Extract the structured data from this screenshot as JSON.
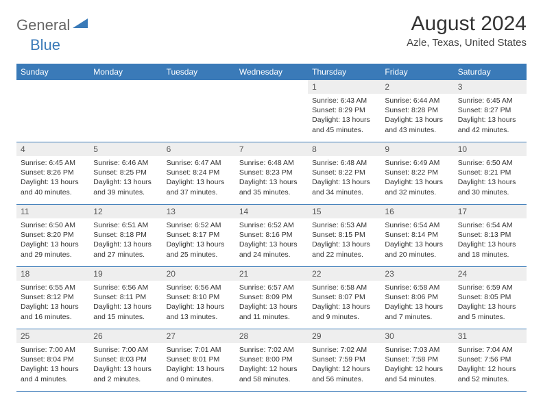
{
  "logo": {
    "general": "General",
    "blue": "Blue"
  },
  "title": "August 2024",
  "subtitle": "Azle, Texas, United States",
  "colors": {
    "header_bg": "#3a7ab8",
    "header_text": "#ffffff",
    "daynum_bg": "#eeeeee",
    "border": "#3a7ab8",
    "page_bg": "#ffffff",
    "title_color": "#333333",
    "subtitle_color": "#444444",
    "logo_general": "#666666",
    "logo_blue": "#3a7ab8",
    "body_text": "#333333"
  },
  "daynames": [
    "Sunday",
    "Monday",
    "Tuesday",
    "Wednesday",
    "Thursday",
    "Friday",
    "Saturday"
  ],
  "weeks": [
    [
      {
        "n": "",
        "sr": "",
        "ss": "",
        "dl": ""
      },
      {
        "n": "",
        "sr": "",
        "ss": "",
        "dl": ""
      },
      {
        "n": "",
        "sr": "",
        "ss": "",
        "dl": ""
      },
      {
        "n": "",
        "sr": "",
        "ss": "",
        "dl": ""
      },
      {
        "n": "1",
        "sr": "Sunrise: 6:43 AM",
        "ss": "Sunset: 8:29 PM",
        "dl": "Daylight: 13 hours and 45 minutes."
      },
      {
        "n": "2",
        "sr": "Sunrise: 6:44 AM",
        "ss": "Sunset: 8:28 PM",
        "dl": "Daylight: 13 hours and 43 minutes."
      },
      {
        "n": "3",
        "sr": "Sunrise: 6:45 AM",
        "ss": "Sunset: 8:27 PM",
        "dl": "Daylight: 13 hours and 42 minutes."
      }
    ],
    [
      {
        "n": "4",
        "sr": "Sunrise: 6:45 AM",
        "ss": "Sunset: 8:26 PM",
        "dl": "Daylight: 13 hours and 40 minutes."
      },
      {
        "n": "5",
        "sr": "Sunrise: 6:46 AM",
        "ss": "Sunset: 8:25 PM",
        "dl": "Daylight: 13 hours and 39 minutes."
      },
      {
        "n": "6",
        "sr": "Sunrise: 6:47 AM",
        "ss": "Sunset: 8:24 PM",
        "dl": "Daylight: 13 hours and 37 minutes."
      },
      {
        "n": "7",
        "sr": "Sunrise: 6:48 AM",
        "ss": "Sunset: 8:23 PM",
        "dl": "Daylight: 13 hours and 35 minutes."
      },
      {
        "n": "8",
        "sr": "Sunrise: 6:48 AM",
        "ss": "Sunset: 8:22 PM",
        "dl": "Daylight: 13 hours and 34 minutes."
      },
      {
        "n": "9",
        "sr": "Sunrise: 6:49 AM",
        "ss": "Sunset: 8:22 PM",
        "dl": "Daylight: 13 hours and 32 minutes."
      },
      {
        "n": "10",
        "sr": "Sunrise: 6:50 AM",
        "ss": "Sunset: 8:21 PM",
        "dl": "Daylight: 13 hours and 30 minutes."
      }
    ],
    [
      {
        "n": "11",
        "sr": "Sunrise: 6:50 AM",
        "ss": "Sunset: 8:20 PM",
        "dl": "Daylight: 13 hours and 29 minutes."
      },
      {
        "n": "12",
        "sr": "Sunrise: 6:51 AM",
        "ss": "Sunset: 8:18 PM",
        "dl": "Daylight: 13 hours and 27 minutes."
      },
      {
        "n": "13",
        "sr": "Sunrise: 6:52 AM",
        "ss": "Sunset: 8:17 PM",
        "dl": "Daylight: 13 hours and 25 minutes."
      },
      {
        "n": "14",
        "sr": "Sunrise: 6:52 AM",
        "ss": "Sunset: 8:16 PM",
        "dl": "Daylight: 13 hours and 24 minutes."
      },
      {
        "n": "15",
        "sr": "Sunrise: 6:53 AM",
        "ss": "Sunset: 8:15 PM",
        "dl": "Daylight: 13 hours and 22 minutes."
      },
      {
        "n": "16",
        "sr": "Sunrise: 6:54 AM",
        "ss": "Sunset: 8:14 PM",
        "dl": "Daylight: 13 hours and 20 minutes."
      },
      {
        "n": "17",
        "sr": "Sunrise: 6:54 AM",
        "ss": "Sunset: 8:13 PM",
        "dl": "Daylight: 13 hours and 18 minutes."
      }
    ],
    [
      {
        "n": "18",
        "sr": "Sunrise: 6:55 AM",
        "ss": "Sunset: 8:12 PM",
        "dl": "Daylight: 13 hours and 16 minutes."
      },
      {
        "n": "19",
        "sr": "Sunrise: 6:56 AM",
        "ss": "Sunset: 8:11 PM",
        "dl": "Daylight: 13 hours and 15 minutes."
      },
      {
        "n": "20",
        "sr": "Sunrise: 6:56 AM",
        "ss": "Sunset: 8:10 PM",
        "dl": "Daylight: 13 hours and 13 minutes."
      },
      {
        "n": "21",
        "sr": "Sunrise: 6:57 AM",
        "ss": "Sunset: 8:09 PM",
        "dl": "Daylight: 13 hours and 11 minutes."
      },
      {
        "n": "22",
        "sr": "Sunrise: 6:58 AM",
        "ss": "Sunset: 8:07 PM",
        "dl": "Daylight: 13 hours and 9 minutes."
      },
      {
        "n": "23",
        "sr": "Sunrise: 6:58 AM",
        "ss": "Sunset: 8:06 PM",
        "dl": "Daylight: 13 hours and 7 minutes."
      },
      {
        "n": "24",
        "sr": "Sunrise: 6:59 AM",
        "ss": "Sunset: 8:05 PM",
        "dl": "Daylight: 13 hours and 5 minutes."
      }
    ],
    [
      {
        "n": "25",
        "sr": "Sunrise: 7:00 AM",
        "ss": "Sunset: 8:04 PM",
        "dl": "Daylight: 13 hours and 4 minutes."
      },
      {
        "n": "26",
        "sr": "Sunrise: 7:00 AM",
        "ss": "Sunset: 8:03 PM",
        "dl": "Daylight: 13 hours and 2 minutes."
      },
      {
        "n": "27",
        "sr": "Sunrise: 7:01 AM",
        "ss": "Sunset: 8:01 PM",
        "dl": "Daylight: 13 hours and 0 minutes."
      },
      {
        "n": "28",
        "sr": "Sunrise: 7:02 AM",
        "ss": "Sunset: 8:00 PM",
        "dl": "Daylight: 12 hours and 58 minutes."
      },
      {
        "n": "29",
        "sr": "Sunrise: 7:02 AM",
        "ss": "Sunset: 7:59 PM",
        "dl": "Daylight: 12 hours and 56 minutes."
      },
      {
        "n": "30",
        "sr": "Sunrise: 7:03 AM",
        "ss": "Sunset: 7:58 PM",
        "dl": "Daylight: 12 hours and 54 minutes."
      },
      {
        "n": "31",
        "sr": "Sunrise: 7:04 AM",
        "ss": "Sunset: 7:56 PM",
        "dl": "Daylight: 12 hours and 52 minutes."
      }
    ]
  ]
}
